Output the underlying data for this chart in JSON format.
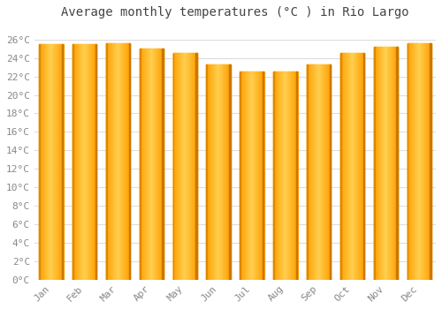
{
  "title": "Average monthly temperatures (°C ) in Rio Largo",
  "months": [
    "Jan",
    "Feb",
    "Mar",
    "Apr",
    "May",
    "Jun",
    "Jul",
    "Aug",
    "Sep",
    "Oct",
    "Nov",
    "Dec"
  ],
  "values": [
    25.5,
    25.5,
    25.6,
    25.0,
    24.5,
    23.3,
    22.5,
    22.5,
    23.3,
    24.5,
    25.2,
    25.6
  ],
  "bar_color_left": "#FFA500",
  "bar_color_center": "#FFD050",
  "bar_color_right": "#E08000",
  "ylim": [
    0,
    27.5
  ],
  "yticks": [
    0,
    2,
    4,
    6,
    8,
    10,
    12,
    14,
    16,
    18,
    20,
    22,
    24,
    26
  ],
  "ytick_labels": [
    "0°C",
    "2°C",
    "4°C",
    "6°C",
    "8°C",
    "10°C",
    "12°C",
    "14°C",
    "16°C",
    "18°C",
    "20°C",
    "22°C",
    "24°C",
    "26°C"
  ],
  "background_color": "#FFFFFF",
  "plot_bg_color": "#FFFFFF",
  "grid_color": "#DDDDDD",
  "title_fontsize": 10,
  "tick_fontsize": 8,
  "font_family": "monospace",
  "title_color": "#444444",
  "tick_color": "#888888"
}
